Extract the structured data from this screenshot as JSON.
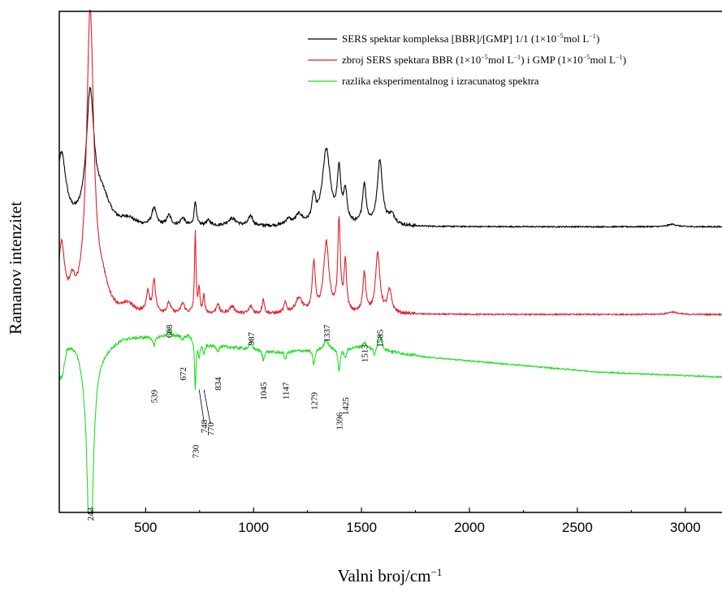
{
  "chart_data": {
    "type": "line",
    "title": "",
    "xlabel": "Valni broj/cm",
    "xlabel_sup": "−1",
    "ylabel": "Ramanov intenzitet",
    "xlim": [
      100,
      3170
    ],
    "ylim": [
      0,
      1
    ],
    "x_ticks": [
      {
        "value": 500,
        "label": "500"
      },
      {
        "value": 1000,
        "label": "1000"
      },
      {
        "value": 1500,
        "label": "1500"
      },
      {
        "value": 2000,
        "label": "2000"
      },
      {
        "value": 2500,
        "label": "2500"
      },
      {
        "value": 3000,
        "label": "3000"
      }
    ],
    "y_ticks_visible": false,
    "grid": false,
    "legend_position": "top-right",
    "legend": [
      {
        "text": "SERS spektar kompleksa [BBR]/[GMP] 1/1 (1×10",
        "sup": "−5",
        "tail": " mol L",
        "sup2": "−1",
        "end": ")",
        "color": "#000000"
      },
      {
        "text": "zbroj SERS spektara BBR (1×10",
        "sup": "−5",
        "tail": " mol L",
        "sup2": "−1",
        "end": ") i GMP (1×10",
        "sup3": "−5",
        "tail3": " mol L",
        "sup4": "−1",
        "end4": ")",
        "color": "#e0202a"
      },
      {
        "text": "razlika eksperimentalnog i izracunatog spektra",
        "sup": "",
        "tail": "",
        "sup2": "",
        "end": "",
        "color": "#22dd22"
      }
    ],
    "series": [
      {
        "color": "#000000",
        "baseline": 0.57,
        "peaks": [
          {
            "x": 110,
            "h": 0.14,
            "w": 25
          },
          {
            "x": 243,
            "h": 0.255,
            "w": 22
          },
          {
            "x": 300,
            "h": 0.05,
            "w": 40
          },
          {
            "x": 420,
            "h": 0.012,
            "w": 30
          },
          {
            "x": 539,
            "h": 0.035,
            "w": 12
          },
          {
            "x": 608,
            "h": 0.02,
            "w": 12
          },
          {
            "x": 672,
            "h": 0.015,
            "w": 12
          },
          {
            "x": 730,
            "h": 0.05,
            "w": 6
          },
          {
            "x": 790,
            "h": 0.01,
            "w": 15
          },
          {
            "x": 900,
            "h": 0.015,
            "w": 25
          },
          {
            "x": 987,
            "h": 0.02,
            "w": 12
          },
          {
            "x": 1160,
            "h": 0.012,
            "w": 15
          },
          {
            "x": 1210,
            "h": 0.02,
            "w": 20
          },
          {
            "x": 1279,
            "h": 0.05,
            "w": 10
          },
          {
            "x": 1337,
            "h": 0.15,
            "w": 22
          },
          {
            "x": 1396,
            "h": 0.1,
            "w": 10
          },
          {
            "x": 1425,
            "h": 0.06,
            "w": 10
          },
          {
            "x": 1513,
            "h": 0.08,
            "w": 10
          },
          {
            "x": 1585,
            "h": 0.13,
            "w": 14
          },
          {
            "x": 1640,
            "h": 0.02,
            "w": 20
          },
          {
            "x": 2940,
            "h": 0.005,
            "w": 25
          }
        ]
      },
      {
        "color": "#e0202a",
        "baseline": 0.395,
        "peaks": [
          {
            "x": 110,
            "h": 0.13,
            "w": 18
          },
          {
            "x": 160,
            "h": 0.04,
            "w": 15
          },
          {
            "x": 243,
            "h": 0.6,
            "w": 20
          },
          {
            "x": 300,
            "h": 0.04,
            "w": 30
          },
          {
            "x": 420,
            "h": 0.015,
            "w": 25
          },
          {
            "x": 510,
            "h": 0.04,
            "w": 8
          },
          {
            "x": 539,
            "h": 0.065,
            "w": 8
          },
          {
            "x": 608,
            "h": 0.02,
            "w": 10
          },
          {
            "x": 672,
            "h": 0.02,
            "w": 10
          },
          {
            "x": 730,
            "h": 0.165,
            "w": 4
          },
          {
            "x": 748,
            "h": 0.05,
            "w": 4
          },
          {
            "x": 770,
            "h": 0.035,
            "w": 5
          },
          {
            "x": 834,
            "h": 0.02,
            "w": 8
          },
          {
            "x": 900,
            "h": 0.015,
            "w": 15
          },
          {
            "x": 987,
            "h": 0.015,
            "w": 10
          },
          {
            "x": 1045,
            "h": 0.03,
            "w": 6
          },
          {
            "x": 1147,
            "h": 0.02,
            "w": 8
          },
          {
            "x": 1210,
            "h": 0.03,
            "w": 20
          },
          {
            "x": 1279,
            "h": 0.1,
            "w": 8
          },
          {
            "x": 1337,
            "h": 0.14,
            "w": 15
          },
          {
            "x": 1396,
            "h": 0.18,
            "w": 7
          },
          {
            "x": 1425,
            "h": 0.1,
            "w": 7
          },
          {
            "x": 1513,
            "h": 0.08,
            "w": 8
          },
          {
            "x": 1575,
            "h": 0.12,
            "w": 12
          },
          {
            "x": 1630,
            "h": 0.045,
            "w": 12
          },
          {
            "x": 2940,
            "h": 0.005,
            "w": 25
          }
        ]
      },
      {
        "color": "#22dd22",
        "baseline": 0.27,
        "profile": [
          [
            100,
            0.0
          ],
          [
            115,
            0.01
          ],
          [
            135,
            0.065
          ],
          [
            175,
            0.075
          ],
          [
            205,
            0.06
          ],
          [
            300,
            0.06
          ],
          [
            400,
            0.08
          ],
          [
            700,
            0.085
          ],
          [
            770,
            0.065
          ],
          [
            900,
            0.06
          ],
          [
            1100,
            0.05
          ],
          [
            1300,
            0.055
          ],
          [
            1500,
            0.06
          ],
          [
            1650,
            0.05
          ],
          [
            1800,
            0.04
          ],
          [
            2200,
            0.025
          ],
          [
            2600,
            0.01
          ],
          [
            3170,
            0.0
          ]
        ],
        "peaks": [
          {
            "x": 243,
            "h": -0.45,
            "w": 16
          },
          {
            "x": 539,
            "h": -0.02,
            "w": 6
          },
          {
            "x": 608,
            "h": 0.01,
            "w": 8
          },
          {
            "x": 672,
            "h": -0.01,
            "w": 6
          },
          {
            "x": 730,
            "h": -0.1,
            "w": 4
          },
          {
            "x": 748,
            "h": -0.03,
            "w": 4
          },
          {
            "x": 770,
            "h": -0.02,
            "w": 4
          },
          {
            "x": 834,
            "h": -0.01,
            "w": 6
          },
          {
            "x": 987,
            "h": 0.015,
            "w": 8
          },
          {
            "x": 1045,
            "h": -0.02,
            "w": 5
          },
          {
            "x": 1147,
            "h": -0.015,
            "w": 6
          },
          {
            "x": 1279,
            "h": -0.03,
            "w": 6
          },
          {
            "x": 1337,
            "h": 0.02,
            "w": 12
          },
          {
            "x": 1396,
            "h": -0.045,
            "w": 6
          },
          {
            "x": 1425,
            "h": -0.02,
            "w": 6
          },
          {
            "x": 1513,
            "h": 0.01,
            "w": 8
          },
          {
            "x": 1560,
            "h": -0.015,
            "w": 6
          },
          {
            "x": 1585,
            "h": 0.03,
            "w": 10
          }
        ]
      }
    ],
    "annotations": [
      {
        "value": 243,
        "text": "243",
        "y": 0.01,
        "leader": false
      },
      {
        "value": 539,
        "text": "539",
        "y": 0.245,
        "leader": false
      },
      {
        "value": 608,
        "text": "608",
        "y": 0.375,
        "leader": false
      },
      {
        "value": 672,
        "text": "672",
        "y": 0.29,
        "leader": false
      },
      {
        "value": 730,
        "text": "730",
        "y": 0.135,
        "leader": false
      },
      {
        "value": 748,
        "text": "748",
        "y": 0.185,
        "leader": true,
        "label_x": 770
      },
      {
        "value": 770,
        "text": "770",
        "y": 0.18,
        "leader": true,
        "label_x": 800
      },
      {
        "value": 834,
        "text": "834",
        "y": 0.27,
        "leader": false
      },
      {
        "value": 987,
        "text": "987",
        "y": 0.36,
        "leader": false
      },
      {
        "value": 1045,
        "text": "1045",
        "y": 0.26,
        "leader": false
      },
      {
        "value": 1147,
        "text": "1147",
        "y": 0.26,
        "leader": false
      },
      {
        "value": 1279,
        "text": "1279",
        "y": 0.24,
        "leader": false
      },
      {
        "value": 1337,
        "text": "1337",
        "y": 0.375,
        "leader": false
      },
      {
        "value": 1396,
        "text": "1396",
        "y": 0.2,
        "leader": false
      },
      {
        "value": 1425,
        "text": "1425",
        "y": 0.23,
        "leader": false
      },
      {
        "value": 1513,
        "text": "1513",
        "y": 0.335,
        "leader": false
      },
      {
        "value": 1585,
        "text": "1585",
        "y": 0.365,
        "leader": false
      }
    ]
  }
}
